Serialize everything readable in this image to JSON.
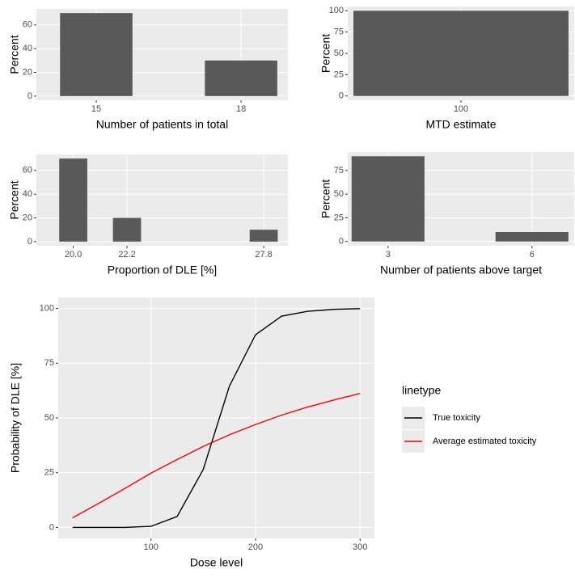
{
  "chart_data": [
    {
      "type": "bar",
      "x_label": "Number of patients in total",
      "y_label": "Percent",
      "x": [
        15,
        18
      ],
      "values": [
        70,
        30
      ],
      "color": "#595959",
      "xlim": [
        13.76,
        18.97
      ],
      "xticks": [
        15,
        18
      ],
      "ylim": [
        -3.5,
        73.5
      ],
      "yticks": [
        0,
        20,
        40,
        60
      ],
      "grid": true
    },
    {
      "type": "bar",
      "x_label": "MTD estimate",
      "y_label": "Percent",
      "x": [
        100
      ],
      "values": [
        100
      ],
      "color": "#595959",
      "xlim": [
        99.5,
        100.5
      ],
      "xticks": [
        100
      ],
      "ylim": [
        -5,
        105
      ],
      "yticks": [
        0,
        25,
        50,
        75,
        100
      ],
      "grid": true
    },
    {
      "type": "bar",
      "x_label": "Proportion of DLE [%]",
      "y_label": "Percent",
      "x": [
        20.0,
        22.2,
        27.8
      ],
      "values": [
        70,
        20,
        10
      ],
      "color": "#595959",
      "xlim": [
        18.49,
        28.79
      ],
      "xticks": [
        {
          "value": 20.0,
          "label": "20.0"
        },
        22.2,
        27.8
      ],
      "ylim": [
        -3.5,
        73.5
      ],
      "yticks": [
        0,
        20,
        40,
        60
      ],
      "grid": true
    },
    {
      "type": "bar",
      "x_label": "Number of patients above target",
      "y_label": "Percent",
      "x": [
        3,
        6
      ],
      "values": [
        90,
        10
      ],
      "color": "#595959",
      "xlim": [
        2.16,
        6.88
      ],
      "xticks": [
        3,
        6
      ],
      "ylim": [
        -4.5,
        94.5
      ],
      "yticks": [
        0,
        25,
        50,
        75
      ],
      "grid": true
    },
    {
      "type": "line",
      "x_label": "Dose level",
      "y_label": "Probability of DLE [%]",
      "x": [
        25,
        50,
        75,
        100,
        125,
        150,
        175,
        200,
        225,
        250,
        275,
        300
      ],
      "series": [
        {
          "name": "True toxicity",
          "color": "#000000",
          "values": [
            0,
            0,
            0,
            0.5,
            5,
            26.5,
            64.5,
            88,
            96.5,
            98.7,
            99.6,
            99.9
          ]
        },
        {
          "name": "Average estimated toxicity",
          "color": "#ff0000",
          "values": [
            4.4,
            11,
            17.8,
            24.8,
            31,
            37,
            42.3,
            47,
            51.3,
            55,
            58.2,
            61.2
          ]
        }
      ],
      "legend_title": "linetype",
      "legend": "right",
      "xlim": [
        11.25,
        313.75
      ],
      "xticks": [
        100,
        200,
        300
      ],
      "ylim": [
        -5,
        105
      ],
      "yticks": [
        0,
        25,
        50,
        75,
        100
      ],
      "grid": true
    }
  ]
}
